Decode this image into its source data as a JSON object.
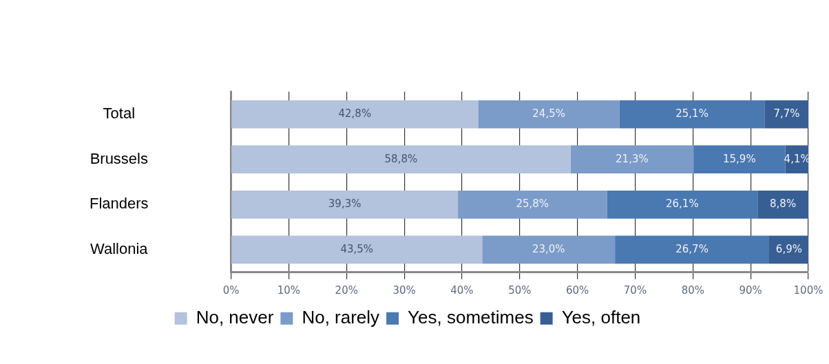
{
  "chart_data": {
    "type": "bar",
    "orientation": "horizontal",
    "stacked": true,
    "categories": [
      "Total",
      "Brussels",
      "Flanders",
      "Wallonia"
    ],
    "series": [
      {
        "name": "No, never",
        "color": "#b3c2dd",
        "values": [
          42.8,
          58.8,
          39.3,
          43.5
        ],
        "value_labels": [
          "42,8%",
          "58,8%",
          "39,3%",
          "43,5%"
        ]
      },
      {
        "name": "No, rarely",
        "color": "#7b9bc8",
        "values": [
          24.5,
          21.3,
          25.8,
          23.0
        ],
        "value_labels": [
          "24,5%",
          "21,3%",
          "25,8%",
          "23,0%"
        ]
      },
      {
        "name": "Yes, sometimes",
        "color": "#4a78b0",
        "values": [
          25.1,
          15.9,
          26.1,
          26.7
        ],
        "value_labels": [
          "25,1%",
          "15,9%",
          "26,1%",
          "26,7%"
        ]
      },
      {
        "name": "Yes, often",
        "color": "#385f94",
        "values": [
          7.7,
          4.1,
          8.8,
          6.9
        ],
        "value_labels": [
          "7,7%",
          "4,1%",
          "8,8%",
          "6,9%"
        ]
      }
    ],
    "xlim": [
      0,
      100
    ],
    "xticks": [
      {
        "value": 0,
        "label": "0%"
      },
      {
        "value": 10,
        "label": "10%"
      },
      {
        "value": 20,
        "label": "20%"
      },
      {
        "value": 30,
        "label": "30%"
      },
      {
        "value": 40,
        "label": "40%"
      },
      {
        "value": 50,
        "label": "50%"
      },
      {
        "value": 60,
        "label": "60%"
      },
      {
        "value": 70,
        "label": "70%"
      },
      {
        "value": 80,
        "label": "80%"
      },
      {
        "value": 90,
        "label": "90%"
      },
      {
        "value": 100,
        "label": "100%"
      }
    ],
    "grid": "x",
    "legend": "bottom"
  }
}
